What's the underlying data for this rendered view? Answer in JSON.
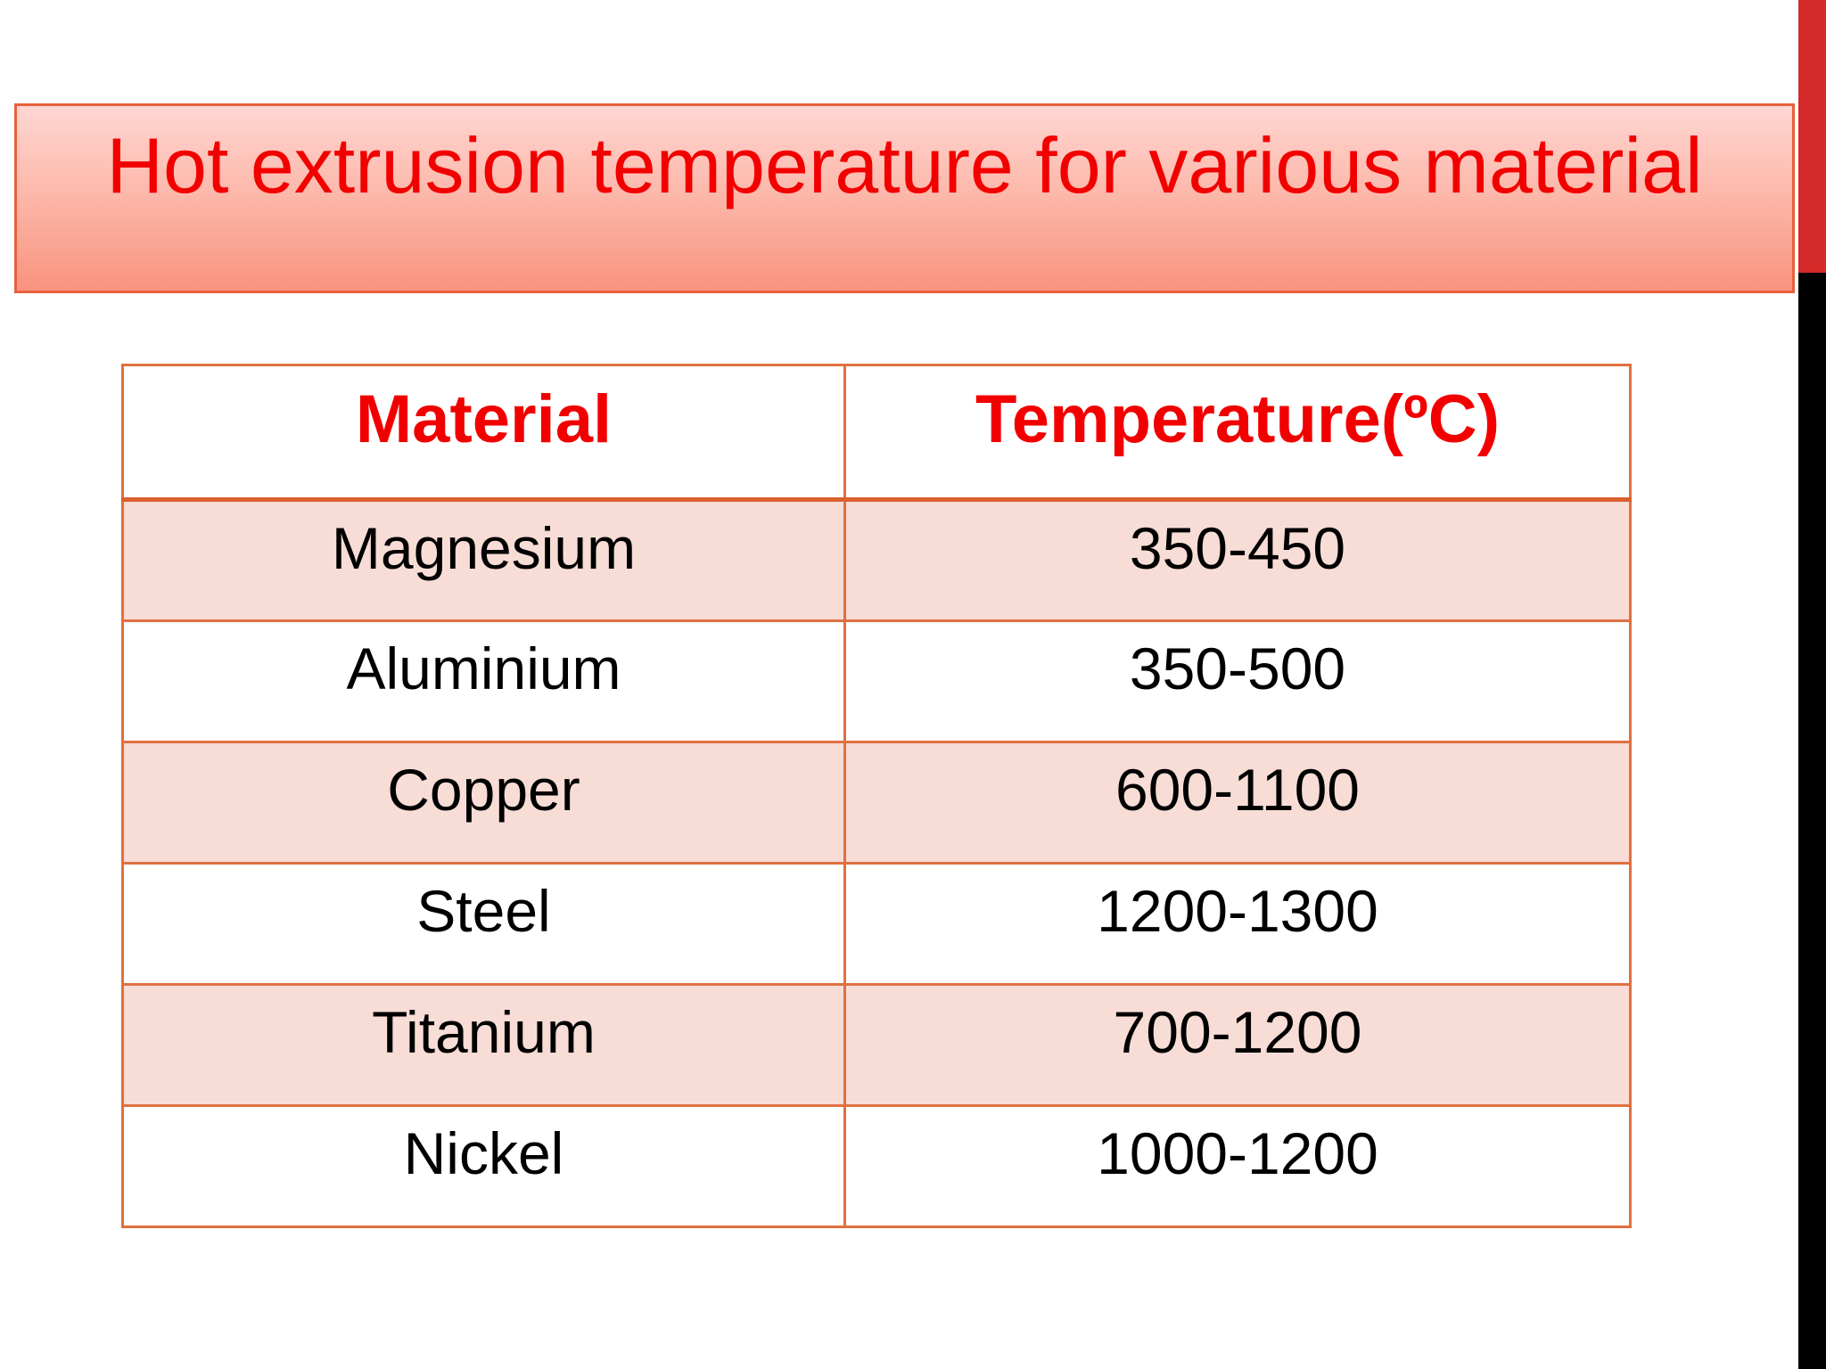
{
  "slide": {
    "title": "Hot extrusion temperature for various material"
  },
  "table": {
    "headers": [
      "Material",
      "Temperature(ºC)"
    ],
    "rows": [
      [
        "Magnesium",
        "350-450"
      ],
      [
        "Aluminium",
        "350-500"
      ],
      [
        "Copper",
        "600-1100"
      ],
      [
        "Steel",
        "1200-1300"
      ],
      [
        "Titanium",
        "700-1200"
      ],
      [
        "Nickel",
        "1000-1200"
      ]
    ]
  },
  "colors": {
    "title_text": "#f20000",
    "banner_border": "#e8603c",
    "table_border": "#e07040",
    "row_shade": "#f7ddd6",
    "right_strip": "#000000",
    "right_strip_accent": "#d42a2a"
  }
}
